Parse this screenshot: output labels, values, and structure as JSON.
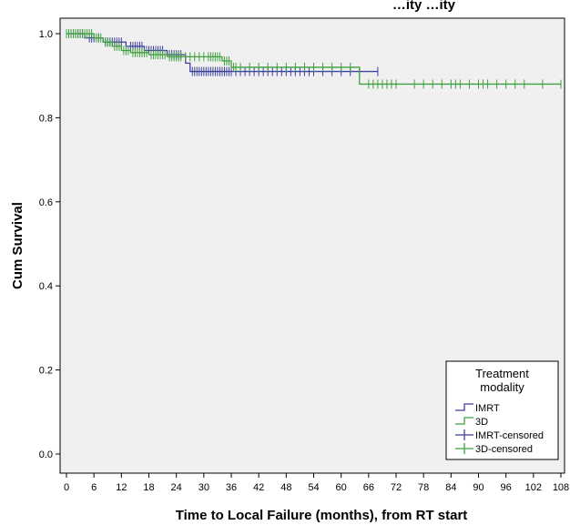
{
  "chart_data": {
    "type": "line",
    "title_partial": "…ity …ity",
    "xlabel": "Time to Local Failure (months), from RT start",
    "ylabel": "Cum Survival",
    "xlim": [
      0,
      108
    ],
    "ylim": [
      0.0,
      1.0
    ],
    "x_ticks": [
      "0",
      "6",
      "12",
      "18",
      "24",
      "30",
      "36",
      "42",
      "48",
      "54",
      "60",
      "66",
      "72",
      "78",
      "84",
      "90",
      "96",
      "102",
      "108"
    ],
    "y_ticks": [
      "0.0",
      "0.2",
      "0.4",
      "0.6",
      "0.8",
      "1.0"
    ],
    "legend": {
      "title_line1": "Treatment",
      "title_line2": "modality",
      "placement": "bottom-right",
      "entries": [
        "IMRT",
        "3D",
        "IMRT-censored",
        "3D-censored"
      ]
    },
    "colors": {
      "IMRT": "#3f3f9f",
      "3D": "#3fa13f",
      "background": "#f0f0f0"
    },
    "series": [
      {
        "name": "IMRT",
        "steps": [
          [
            0,
            1.0
          ],
          [
            4,
            0.99
          ],
          [
            8,
            0.98
          ],
          [
            13,
            0.97
          ],
          [
            17,
            0.96
          ],
          [
            22,
            0.95
          ],
          [
            26,
            0.93
          ],
          [
            27,
            0.91
          ],
          [
            68,
            0.91
          ]
        ],
        "censored": [
          0.5,
          1,
          1.5,
          2,
          2.5,
          3,
          3.5,
          5,
          5.5,
          6,
          7,
          8.5,
          9,
          9.5,
          10,
          10.5,
          11,
          11.5,
          12,
          14,
          14.5,
          15,
          15.5,
          16,
          16.5,
          17.5,
          18,
          18.5,
          19,
          19.5,
          20,
          20.5,
          21,
          22.5,
          23,
          23.5,
          24,
          24.5,
          25,
          27.5,
          28,
          28.5,
          29,
          29.5,
          30,
          30.5,
          31,
          31.5,
          32,
          32.5,
          33,
          33.5,
          34,
          34.5,
          35,
          35.5,
          36,
          37,
          38,
          39,
          40,
          41,
          42,
          43,
          44,
          45,
          46,
          47,
          48,
          49,
          50,
          51,
          52,
          53,
          54,
          56,
          58,
          60,
          62,
          64,
          68
        ]
      },
      {
        "name": "3D",
        "steps": [
          [
            0,
            1.0
          ],
          [
            6,
            0.99
          ],
          [
            8,
            0.98
          ],
          [
            10,
            0.97
          ],
          [
            12,
            0.96
          ],
          [
            14,
            0.955
          ],
          [
            18,
            0.95
          ],
          [
            22,
            0.945
          ],
          [
            34,
            0.935
          ],
          [
            36,
            0.92
          ],
          [
            64,
            0.88
          ],
          [
            108,
            0.88
          ]
        ],
        "censored": [
          0,
          0.5,
          1,
          1.5,
          2,
          2.5,
          3,
          3.5,
          4,
          4.5,
          5,
          5.5,
          6.5,
          7,
          7.5,
          8.5,
          9,
          9.5,
          10.5,
          11,
          11.5,
          12.5,
          13,
          13.5,
          14.5,
          15,
          15.5,
          16,
          16.5,
          17,
          17.5,
          18.5,
          19,
          19.5,
          20,
          20.5,
          21,
          21.5,
          22.5,
          23,
          23.5,
          24,
          24.5,
          25,
          26,
          27,
          28,
          29,
          30,
          31,
          31.5,
          32,
          32.5,
          33,
          33.5,
          34.5,
          35,
          35.5,
          36.5,
          37,
          38,
          40,
          42,
          44,
          46,
          48,
          50,
          52,
          54,
          56,
          58,
          60,
          62,
          66,
          67,
          68,
          69,
          70,
          71,
          72,
          76,
          78,
          80,
          82,
          84,
          85,
          86,
          88,
          90,
          91,
          92,
          94,
          96,
          98,
          100,
          104,
          108
        ]
      }
    ]
  }
}
